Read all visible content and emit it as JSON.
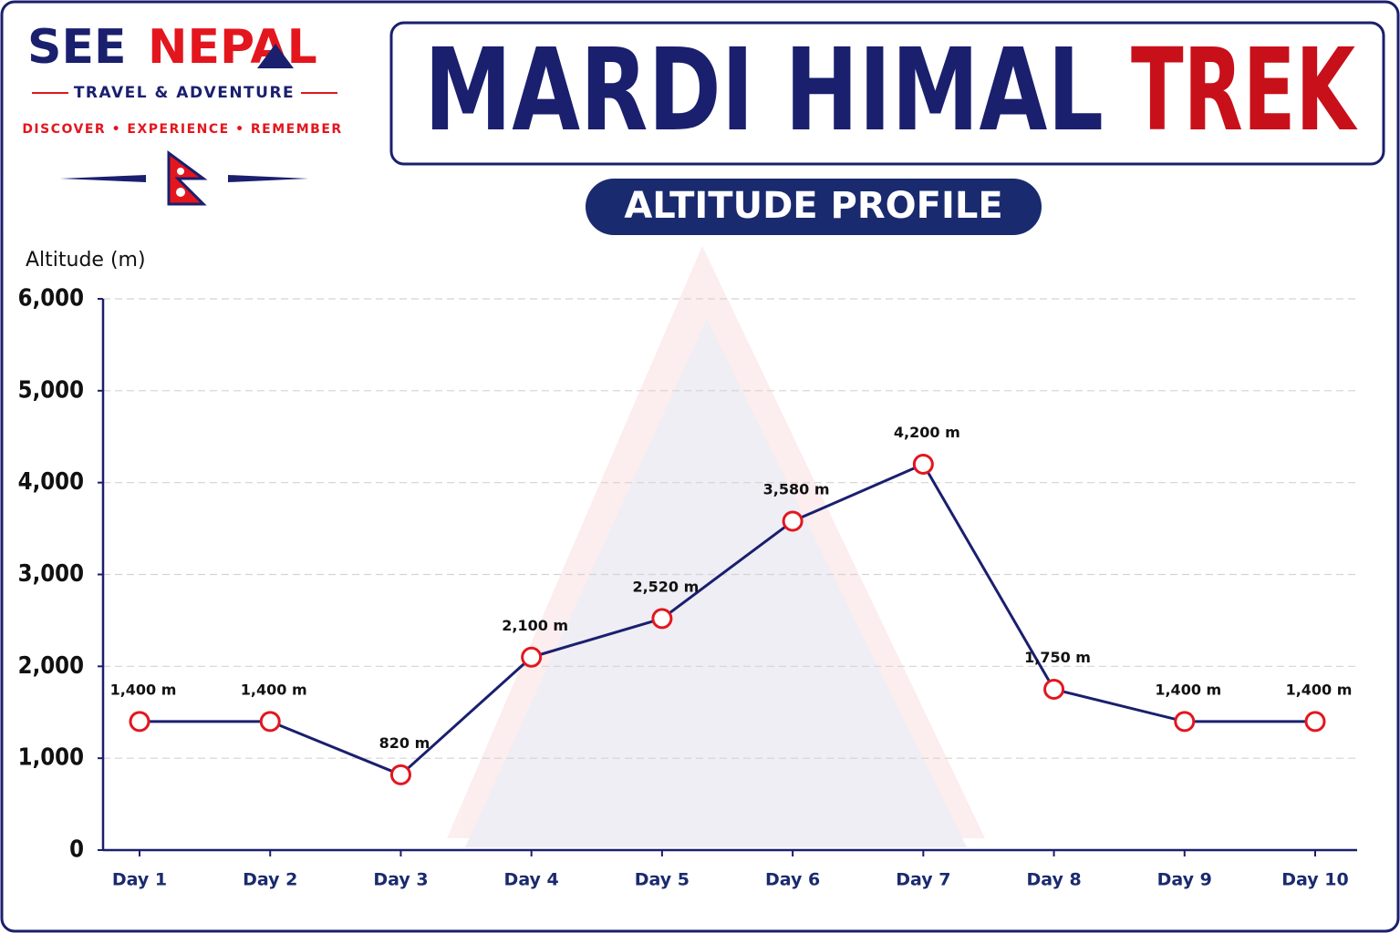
{
  "header": {
    "brand_first": "SEE",
    "brand_second": "NEPAL",
    "tagline": "TRAVEL & ADVENTURE",
    "motto": "DISCOVER • EXPERIENCE • REMEMBER",
    "title": "MARDI HIMAL",
    "title_highlight": "TREK",
    "subtitle": "ALTITUDE PROFILE"
  },
  "chart_data": {
    "type": "line",
    "y_label": "Altitude (m)",
    "categories": [
      "Day 1",
      "Day 2",
      "Day 3",
      "Day 4",
      "Day 5",
      "Day 6",
      "Day 7",
      "Day 8",
      "Day 9",
      "Day 10"
    ],
    "values": [
      1400,
      1400,
      820,
      2100,
      2520,
      3580,
      4200,
      1750,
      1400,
      1400
    ],
    "value_labels": [
      "1,400 m",
      "1,400 m",
      "820 m",
      "2,100 m",
      "2,520 m",
      "3,580 m",
      "4,200 m",
      "1,750 m",
      "1,400 m",
      "1,400 m"
    ],
    "color": "#1a1f6e",
    "marker_color": "#e3161e",
    "ylim": [
      0,
      6000
    ],
    "yticks": [
      0,
      {
        "value": 1000,
        "label": "1,000"
      },
      {
        "value": 2000,
        "label": "2,000"
      },
      {
        "value": 3000,
        "label": "3,000"
      },
      {
        "value": 4000,
        "label": "4,000"
      },
      {
        "value": 5000,
        "label": "5,000"
      },
      {
        "value": 6000,
        "label": "6,000"
      }
    ],
    "grid": true
  }
}
